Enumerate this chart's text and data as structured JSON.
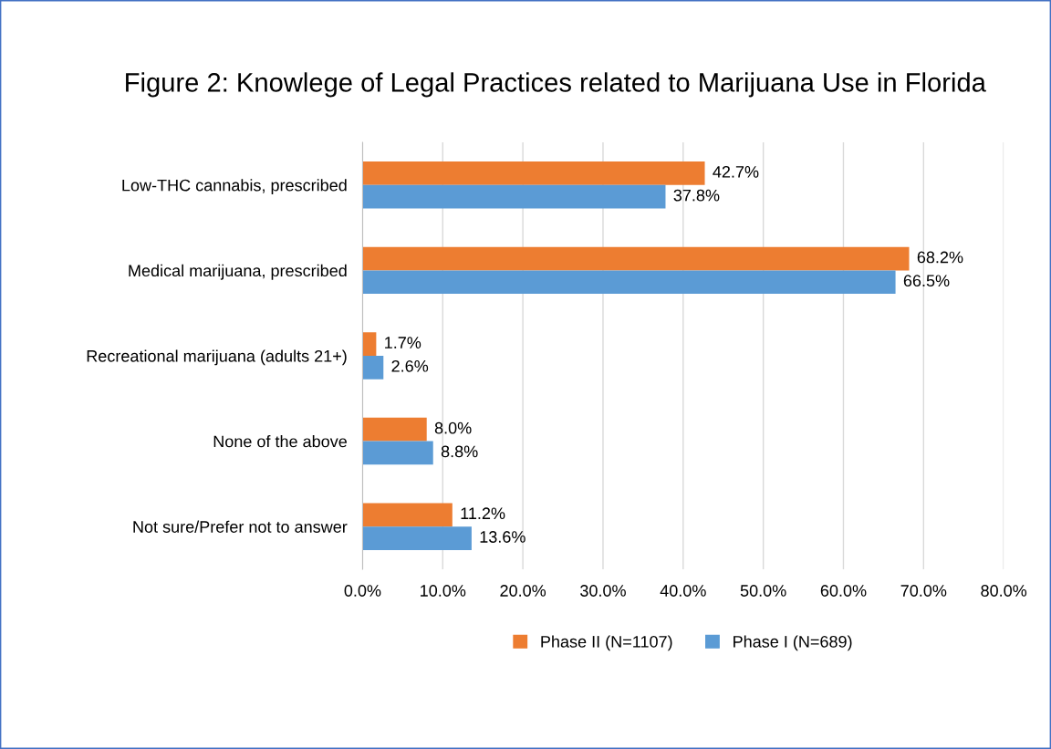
{
  "chart_data": {
    "type": "bar",
    "orientation": "horizontal",
    "title": "Figure 2: Knowlege of Legal Practices related to Marijuana Use in Florida",
    "categories": [
      "Low-THC cannabis, prescribed",
      "Medical marijuana, prescribed",
      "Recreational marijuana (adults 21+)",
      "None of the above",
      "Not sure/Prefer not to answer"
    ],
    "series": [
      {
        "name": "Phase II (N=1107)",
        "color": "#ed7d31",
        "values": [
          42.7,
          68.2,
          1.7,
          8.0,
          11.2
        ],
        "value_labels": [
          "42.7%",
          "68.2%",
          "1.7%",
          "8.0%",
          "11.2%"
        ]
      },
      {
        "name": "Phase I (N=689)",
        "color": "#5b9bd5",
        "values": [
          37.8,
          66.5,
          2.6,
          8.8,
          13.6
        ],
        "value_labels": [
          "37.8%",
          "66.5%",
          "2.6%",
          "8.8%",
          "13.6%"
        ]
      }
    ],
    "xlim": [
      0,
      80
    ],
    "xticks": [
      {
        "value": 0,
        "label": "0.0%"
      },
      {
        "value": 10,
        "label": "10.0%"
      },
      {
        "value": 20,
        "label": "20.0%"
      },
      {
        "value": 30,
        "label": "30.0%"
      },
      {
        "value": 40,
        "label": "40.0%"
      },
      {
        "value": 50,
        "label": "50.0%"
      },
      {
        "value": 60,
        "label": "60.0%"
      },
      {
        "value": 70,
        "label": "70.0%"
      },
      {
        "value": 80,
        "label": "80.0%"
      }
    ],
    "grid": "x",
    "legend": "bottom"
  }
}
